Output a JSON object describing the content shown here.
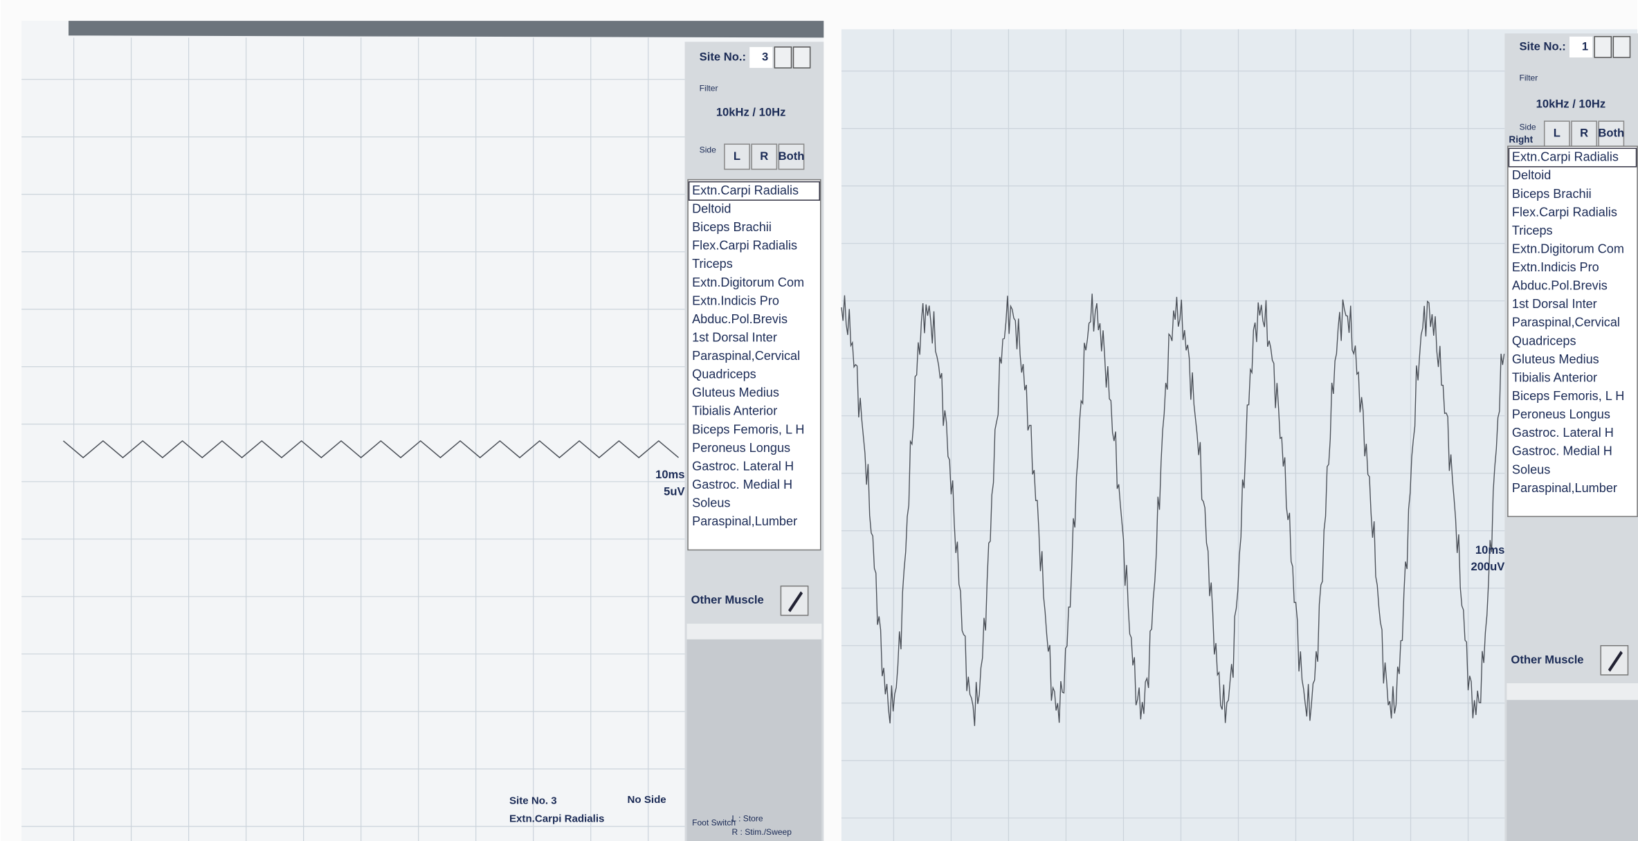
{
  "left_screen": {
    "site_label": "Site No.:",
    "site_number": "3",
    "filter_label": "Filter",
    "filter_value": "10kHz / 10Hz",
    "side_label": "Side",
    "side_buttons": [
      "L",
      "R",
      "Both"
    ],
    "muscles": [
      "Extn.Carpi Radialis",
      "Deltoid",
      "Biceps Brachii",
      "Flex.Carpi Radialis",
      "Triceps",
      "Extn.Digitorum Com",
      "Extn.Indicis Pro",
      "Abduc.Pol.Brevis",
      "1st Dorsal Inter",
      "Paraspinal,Cervical",
      "Quadriceps",
      "Gluteus Medius",
      "Tibialis Anterior",
      "Biceps Femoris, L H",
      "Peroneus Longus",
      "Gastroc. Lateral H",
      "Gastroc. Medial H",
      "Soleus",
      "Paraspinal,Lumber"
    ],
    "scale_time": "10ms",
    "scale_amplitude": "5uV",
    "other_muscle": "Other Muscle",
    "status": {
      "site": "Site No. 3",
      "side": "No Side",
      "muscle": "Extn.Carpi Radialis",
      "foot_switch": "Foot Switch",
      "left_action": "L : Store",
      "right_action": "R : Stim./Sweep"
    }
  },
  "right_screen": {
    "site_label": "Site No.:",
    "site_number": "1",
    "filter_label": "Filter",
    "filter_value": "10kHz / 10Hz",
    "side_label": "Side",
    "side_value": "Right",
    "side_buttons": [
      "L",
      "R",
      "Both"
    ],
    "muscles": [
      "Extn.Carpi Radialis",
      "Deltoid",
      "Biceps Brachii",
      "Flex.Carpi Radialis",
      "Triceps",
      "Extn.Digitorum Com",
      "Extn.Indicis Pro",
      "Abduc.Pol.Brevis",
      "1st Dorsal Inter",
      "Paraspinal,Cervical",
      "Quadriceps",
      "Gluteus Medius",
      "Tibialis Anterior",
      "Biceps Femoris, L H",
      "Peroneus Longus",
      "Gastroc. Lateral H",
      "Gastroc. Medial H",
      "Soleus",
      "Paraspinal,Lumber"
    ],
    "scale_time": "10ms",
    "scale_amplitude": "200uV",
    "other_muscle": "Other Muscle"
  }
}
